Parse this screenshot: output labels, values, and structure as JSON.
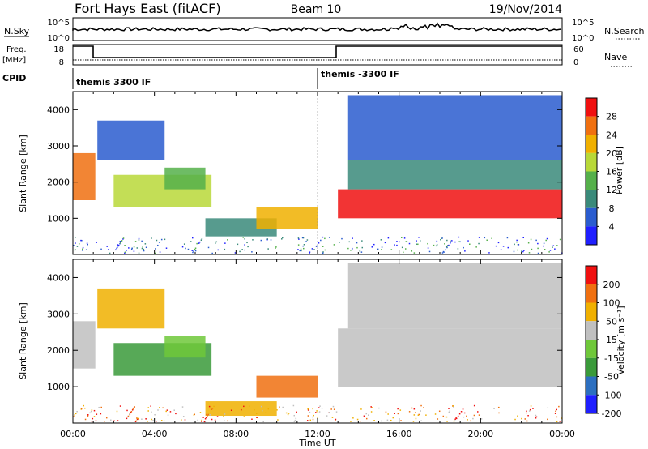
{
  "header": {
    "station": "Fort Hays East (fitACF)",
    "beam": "Beam 10",
    "date": "19/Nov/2014"
  },
  "noise_panel": {
    "left_label": "N.Sky",
    "left_ticks": [
      "10^5",
      "10^0"
    ],
    "right_ticks": [
      "10^5",
      "10^0"
    ],
    "right_label": "N.Search"
  },
  "freq_panel": {
    "left_label_1": "Freq.",
    "left_label_2": "[MHz]",
    "left_ticks": [
      "18",
      "8"
    ],
    "right_ticks": [
      "60",
      "0"
    ],
    "right_label": "Nave"
  },
  "cpid": {
    "label": "CPID",
    "segments": [
      "themis 3300 IF",
      "themis -3300 IF"
    ]
  },
  "chart_data": [
    {
      "type": "heatmap",
      "name": "power",
      "ylabel": "Slant Range [km]",
      "yticks": [
        "1000",
        "2000",
        "3000",
        "4000"
      ],
      "ylim": [
        0,
        4500
      ],
      "colorbar_label": "Power [dB]",
      "colorbar_ticks": [
        "4",
        "8",
        "12",
        "16",
        "20",
        "24",
        "28"
      ],
      "colors": [
        "#1f1fff",
        "#2a5ccf",
        "#3a8a7a",
        "#55b04a",
        "#b8d838",
        "#f0b000",
        "#f07010",
        "#f01010"
      ],
      "regions": [
        {
          "t0": 0.0,
          "t1": 1.1,
          "r0": 1500,
          "r1": 2800,
          "level": 6
        },
        {
          "t0": 1.2,
          "t1": 4.5,
          "r0": 2600,
          "r1": 3700,
          "level": 1
        },
        {
          "t0": 2.0,
          "t1": 6.8,
          "r0": 1300,
          "r1": 2200,
          "level": 4
        },
        {
          "t0": 4.5,
          "t1": 6.5,
          "r0": 1800,
          "r1": 2400,
          "level": 3
        },
        {
          "t0": 6.5,
          "t1": 10.0,
          "r0": 500,
          "r1": 1000,
          "level": 2
        },
        {
          "t0": 9.0,
          "t1": 12.0,
          "r0": 700,
          "r1": 1300,
          "level": 5
        },
        {
          "t0": 13.0,
          "t1": 24.0,
          "r0": 1000,
          "r1": 1800,
          "level": 7
        },
        {
          "t0": 13.5,
          "t1": 24.0,
          "r0": 1800,
          "r1": 2600,
          "level": 2
        },
        {
          "t0": 13.5,
          "t1": 24.0,
          "r0": 2600,
          "r1": 4400,
          "level": 1
        }
      ]
    },
    {
      "type": "heatmap",
      "name": "velocity",
      "ylabel": "Slant Range [km]",
      "yticks": [
        "1000",
        "2000",
        "3000",
        "4000"
      ],
      "ylim": [
        0,
        4500
      ],
      "xticks": [
        "00:00",
        "04:00",
        "08:00",
        "12:00",
        "16:00",
        "20:00",
        "00:00"
      ],
      "xlabel": "Time UT",
      "colorbar_label": "Velocity [m s⁻¹]",
      "colorbar_ticks": [
        "200",
        "100",
        "50",
        "15",
        "-15",
        "-50",
        "-100",
        "-200"
      ],
      "colors": [
        "#1f1fff",
        "#2c6fc0",
        "#3a9a3a",
        "#6fc83a",
        "#c0c0c0",
        "#f0b000",
        "#f07010",
        "#f01010"
      ],
      "regions": [
        {
          "t0": 0.0,
          "t1": 1.1,
          "r0": 1500,
          "r1": 2800,
          "level": 4
        },
        {
          "t0": 1.2,
          "t1": 4.5,
          "r0": 2600,
          "r1": 3700,
          "level": 5
        },
        {
          "t0": 2.0,
          "t1": 6.8,
          "r0": 1300,
          "r1": 2200,
          "level": 2
        },
        {
          "t0": 4.5,
          "t1": 6.5,
          "r0": 1800,
          "r1": 2400,
          "level": 3
        },
        {
          "t0": 6.5,
          "t1": 10.0,
          "r0": 200,
          "r1": 600,
          "level": 5
        },
        {
          "t0": 9.0,
          "t1": 12.0,
          "r0": 700,
          "r1": 1300,
          "level": 6
        },
        {
          "t0": 13.0,
          "t1": 24.0,
          "r0": 1000,
          "r1": 2600,
          "level": 4
        },
        {
          "t0": 13.5,
          "t1": 24.0,
          "r0": 2600,
          "r1": 4400,
          "level": 4
        }
      ]
    }
  ]
}
